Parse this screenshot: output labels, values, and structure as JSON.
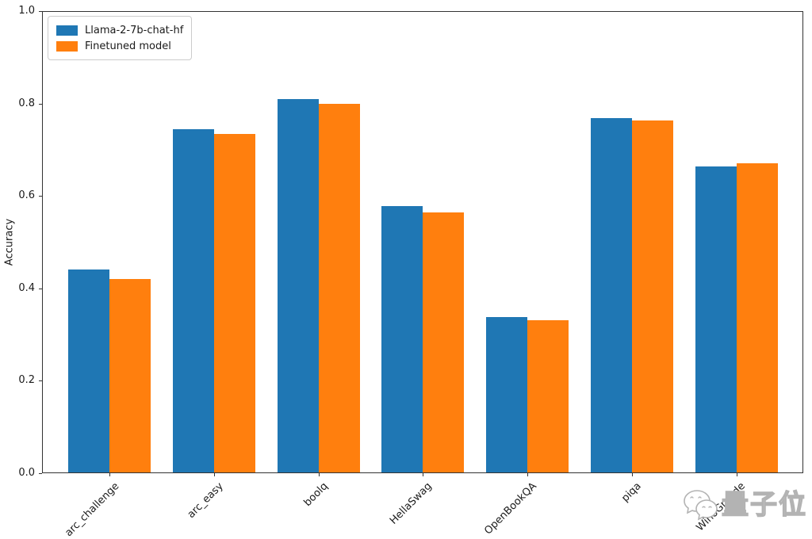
{
  "chart_data": {
    "type": "bar",
    "title": "",
    "xlabel": "",
    "ylabel": "Accuracy",
    "ylim": [
      0.0,
      1.0
    ],
    "yticks": [
      0.0,
      0.2,
      0.4,
      0.6,
      0.8,
      1.0
    ],
    "grid": false,
    "legend_position": "upper-left",
    "categories": [
      "arc_challenge",
      "arc_easy",
      "boolq",
      "HellaSwag",
      "OpenBookQA",
      "piqa",
      "WinoGrande"
    ],
    "series": [
      {
        "name": "Llama-2-7b-chat-hf",
        "color": "#1f77b4",
        "values": [
          0.441,
          0.744,
          0.81,
          0.578,
          0.338,
          0.768,
          0.664
        ]
      },
      {
        "name": "Finetuned model",
        "color": "#ff7f0e",
        "values": [
          0.42,
          0.734,
          0.799,
          0.564,
          0.331,
          0.764,
          0.67
        ]
      }
    ]
  },
  "watermark": {
    "text": "量子位",
    "logo_icon": "qbitai-chat-bubbles-logo"
  }
}
